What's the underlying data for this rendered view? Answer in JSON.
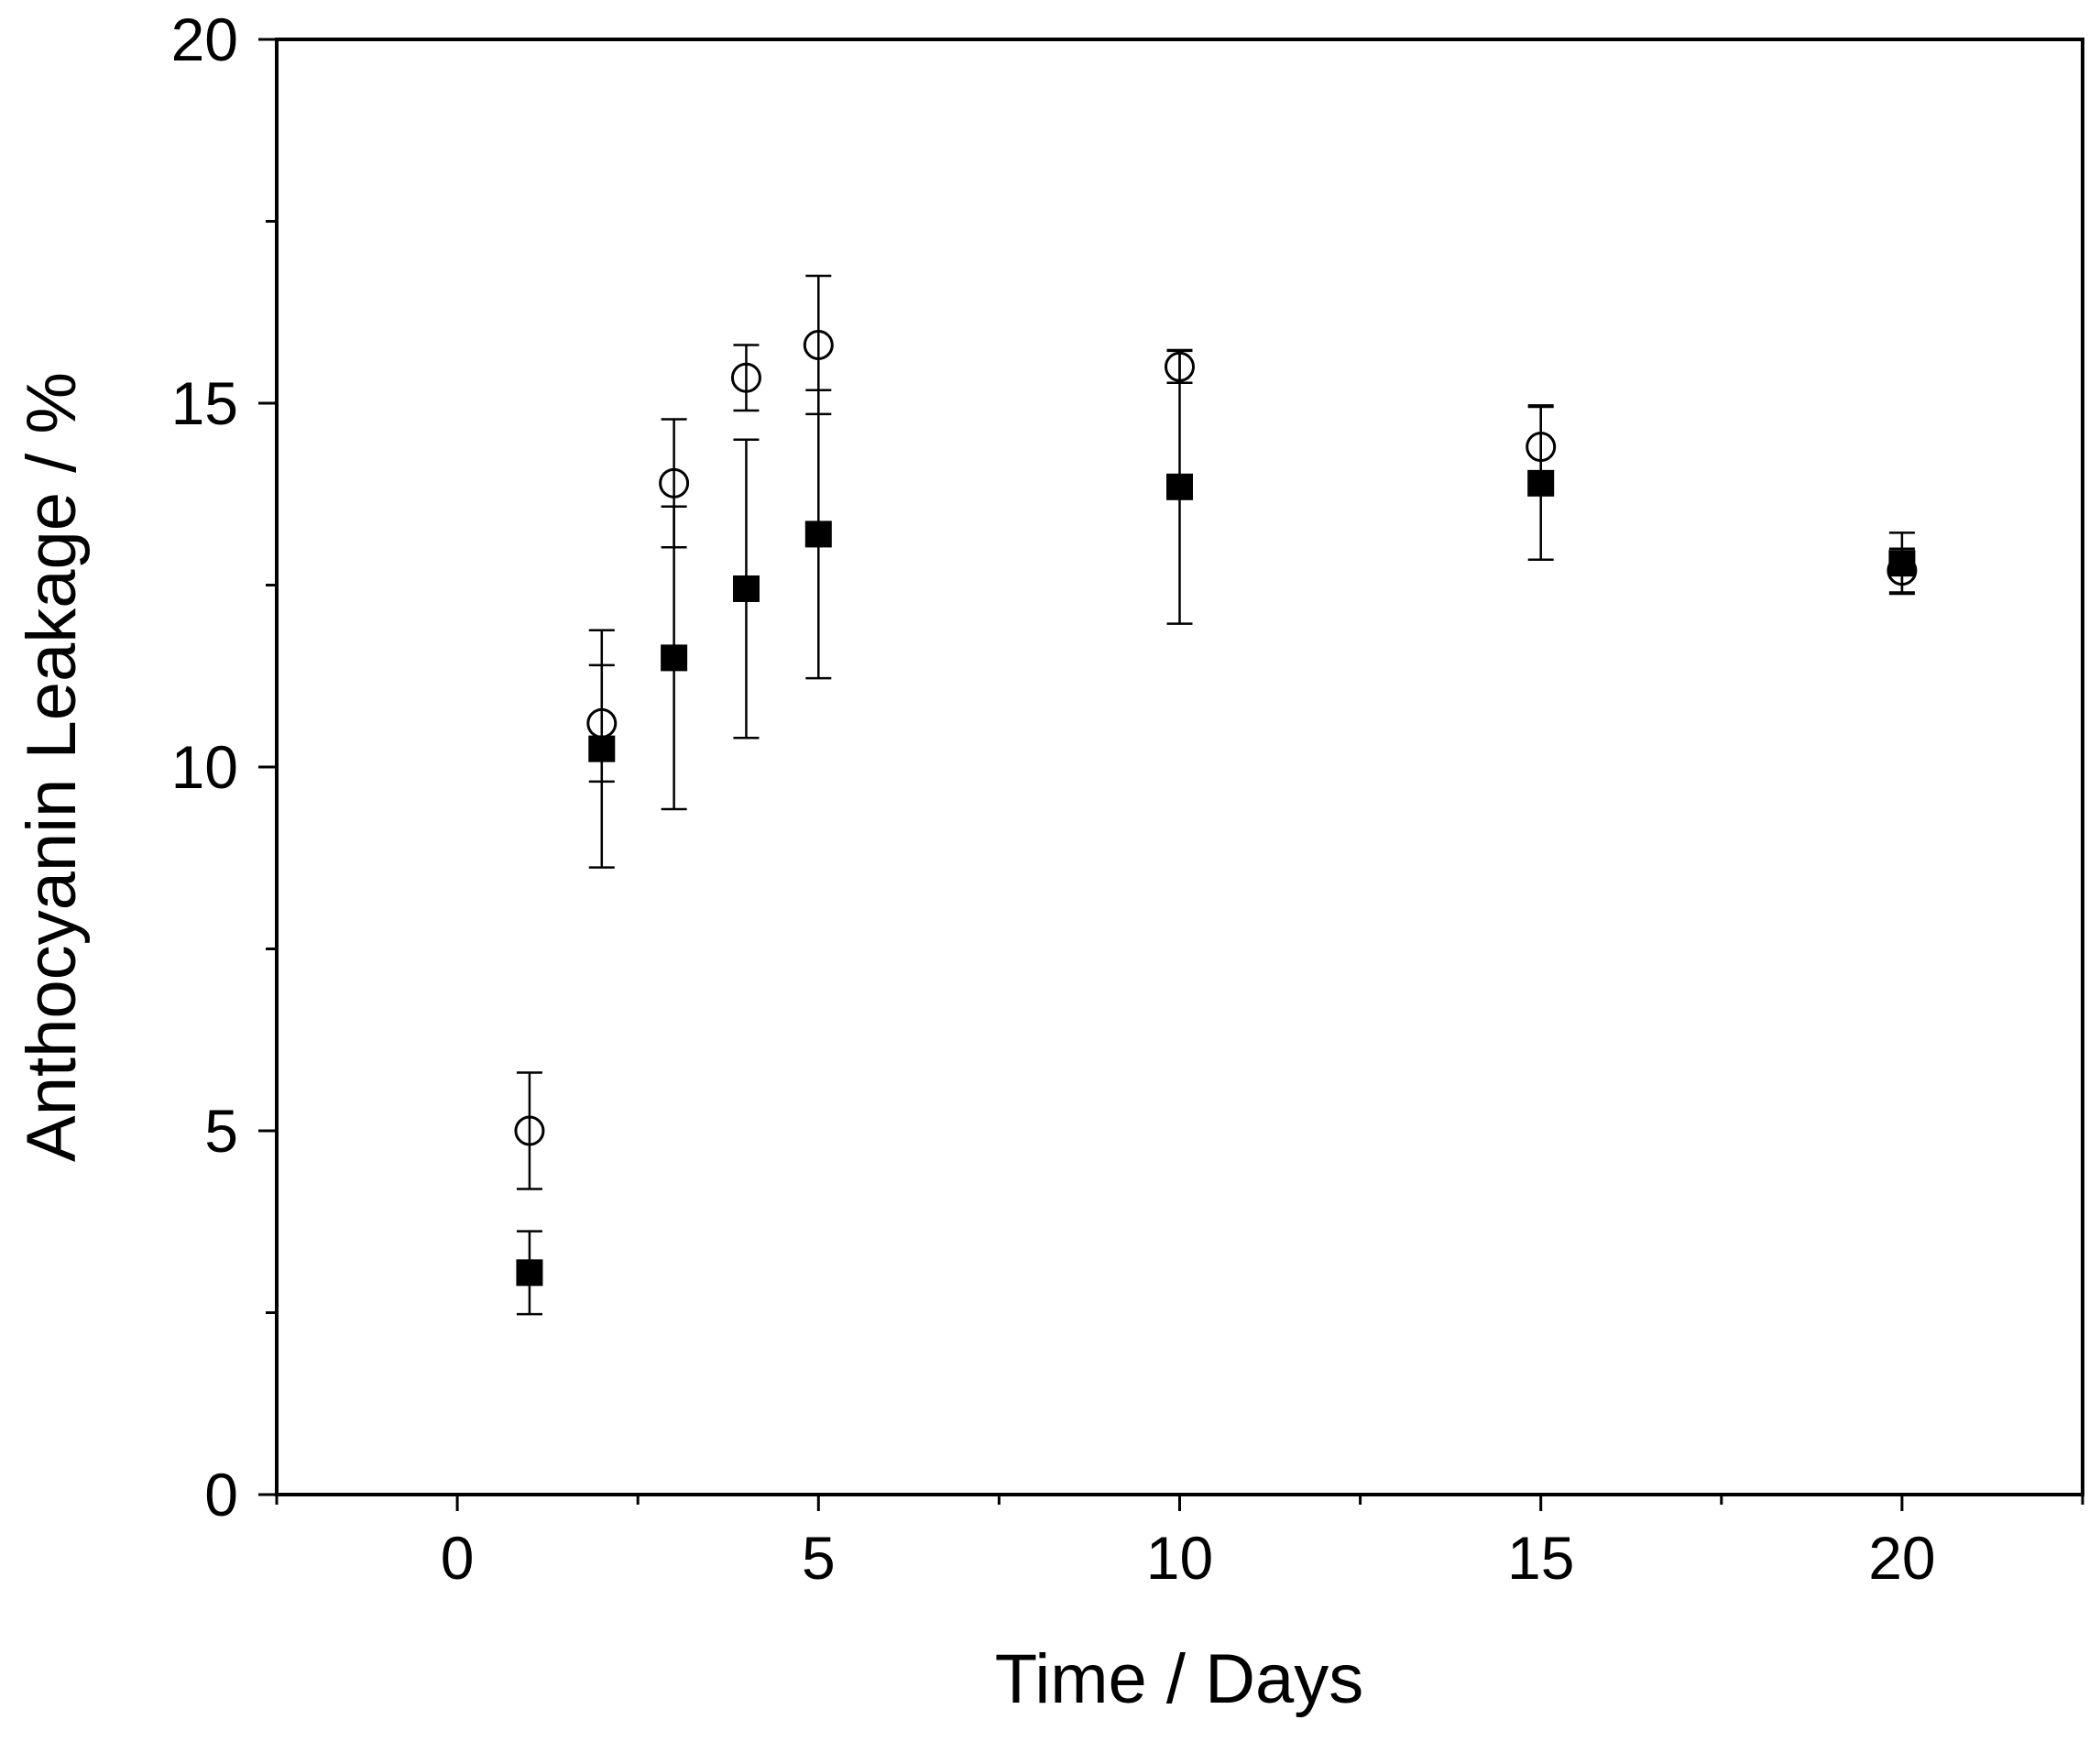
{
  "chart_data": {
    "type": "scatter",
    "title": "",
    "xlabel": "Time / Days",
    "ylabel": "Anthocyanin Leakage / %",
    "xlim": [
      -2.5,
      22.5
    ],
    "ylim": [
      0,
      20
    ],
    "x_ticks": [
      0,
      5,
      10,
      15,
      20
    ],
    "x_ticks_labels": [
      "0",
      "5",
      "10",
      "15",
      "20"
    ],
    "x_minor_ticks": [
      -2.5,
      2.5,
      7.5,
      12.5,
      17.5,
      22.5
    ],
    "y_ticks": [
      0,
      5,
      10,
      15,
      20
    ],
    "y_ticks_labels": [
      "0",
      "5",
      "10",
      "15",
      "20"
    ],
    "y_minor_ticks": [
      2.5,
      7.5,
      12.5,
      17.5
    ],
    "grid": false,
    "legend": "none",
    "series": [
      {
        "name": "open circles",
        "marker": "open-circle",
        "color": "#000000",
        "x": [
          1,
          2,
          3,
          4,
          5,
          10,
          15,
          20
        ],
        "y": [
          5.0,
          10.6,
          13.9,
          15.35,
          15.8,
          15.5,
          14.4,
          12.7
        ],
        "err": [
          0.8,
          0.8,
          0.88,
          0.45,
          0.95,
          0.22,
          0.57,
          0.3
        ]
      },
      {
        "name": "filled squares",
        "marker": "filled-square",
        "color": "#000000",
        "x": [
          1,
          2,
          3,
          4,
          5,
          10,
          15,
          20
        ],
        "y": [
          3.05,
          10.25,
          11.5,
          12.45,
          13.2,
          13.85,
          13.9,
          12.8
        ],
        "err": [
          0.57,
          1.63,
          2.08,
          2.05,
          1.98,
          1.88,
          1.05,
          0.42
        ]
      }
    ]
  }
}
